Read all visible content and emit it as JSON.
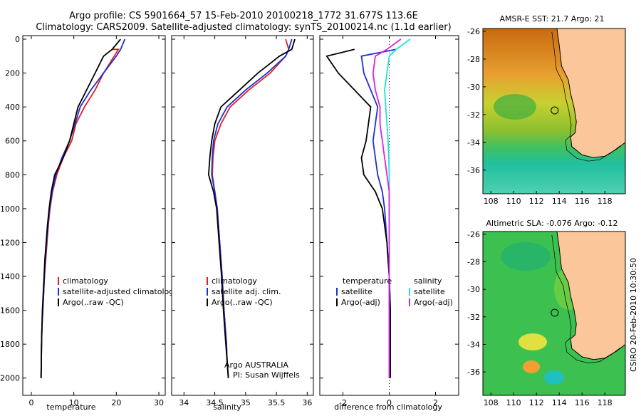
{
  "title": {
    "line1": "Argo profile: CS 5901664_57 15-Feb-2010 20100218_1772 31.677S 113.6E",
    "line2": "Climatology: CARS2009. Satellite-adjusted climatology: synTS_20100214.nc (1.1d earlier)"
  },
  "depth_ticks": [
    "0",
    "200",
    "400",
    "600",
    "800",
    "1000",
    "1200",
    "1400",
    "1600",
    "1800",
    "2000"
  ],
  "chart_data": [
    {
      "type": "line",
      "id": "temperature",
      "xlabel": "temperature",
      "ylabel": "",
      "xlim": [
        -2,
        31.5
      ],
      "ylim": [
        2060,
        0
      ],
      "xticks": [
        "0",
        "10",
        "20",
        "30"
      ],
      "legend": [
        "climatology",
        "satellite-adjusted climatology",
        "Argo(..raw -QC)"
      ],
      "series": [
        {
          "name": "climatology",
          "color": "#e02020",
          "x": [
            19,
            20.5,
            19.5,
            17,
            15,
            12.5,
            10.5,
            9.5,
            7.5,
            6,
            5,
            4.4,
            4,
            3.7,
            3.4,
            3.1,
            2.9,
            2.7,
            2.5,
            2.4,
            2.3
          ],
          "y": [
            60,
            60,
            100,
            200,
            300,
            400,
            500,
            600,
            700,
            800,
            900,
            1000,
            1100,
            1200,
            1300,
            1400,
            1500,
            1600,
            1700,
            1800,
            2000
          ]
        },
        {
          "name": "satellite-adjusted climatology",
          "color": "#1f2fd0",
          "x": [
            22,
            21,
            20,
            17,
            14,
            11.5,
            10.3,
            9,
            7.2,
            5.8,
            4.9,
            4.3,
            3.9,
            3.6,
            3.3,
            3.1,
            2.9,
            2.7,
            2.5,
            2.4,
            2.3
          ],
          "y": [
            0,
            60,
            100,
            200,
            300,
            400,
            500,
            600,
            700,
            800,
            900,
            1000,
            1100,
            1200,
            1300,
            1400,
            1500,
            1600,
            1700,
            1800,
            2000
          ]
        },
        {
          "name": "Argo(..raw -QC)",
          "color": "#000000",
          "x": [
            21,
            19,
            17,
            15,
            13,
            11,
            10,
            9,
            7.5,
            5.5,
            4.7,
            4.2,
            3.8,
            3.5,
            3.2,
            3,
            2.8,
            2.6,
            2.5,
            2.4,
            2.3
          ],
          "y": [
            0,
            60,
            100,
            200,
            300,
            400,
            500,
            600,
            700,
            800,
            900,
            1000,
            1100,
            1200,
            1300,
            1400,
            1500,
            1600,
            1700,
            1800,
            2000
          ]
        }
      ]
    },
    {
      "type": "line",
      "id": "salinity",
      "xlabel": "salinity",
      "ylabel": "",
      "xlim": [
        33.8,
        36.1
      ],
      "ylim": [
        2060,
        0
      ],
      "xticks": [
        "34",
        "34.5",
        "35",
        "35.5",
        "36"
      ],
      "legend": [
        "climatology",
        "satellite adj. clim.",
        "Argo(..raw -QC)"
      ],
      "series": [
        {
          "name": "climatology",
          "color": "#e02020",
          "x": [
            35.65,
            35.7,
            35.65,
            35.4,
            35.05,
            34.75,
            34.6,
            34.5,
            34.47,
            34.46,
            34.5,
            34.54,
            34.58,
            34.62,
            34.65,
            34.67,
            34.69,
            34.7,
            34.72
          ],
          "y": [
            0,
            60,
            100,
            200,
            300,
            400,
            500,
            600,
            700,
            800,
            900,
            1000,
            1200,
            1400,
            1600,
            1700,
            1800,
            1900,
            2000
          ]
        },
        {
          "name": "satellite adj. clim.",
          "color": "#1f2fd0",
          "x": [
            35.75,
            35.7,
            35.65,
            35.35,
            35,
            34.7,
            34.55,
            34.48,
            34.46,
            34.45,
            34.5,
            34.54,
            34.58,
            34.62,
            34.65,
            34.67,
            34.69,
            34.7,
            34.72
          ],
          "y": [
            0,
            60,
            100,
            200,
            300,
            400,
            500,
            600,
            700,
            800,
            900,
            1000,
            1200,
            1400,
            1600,
            1700,
            1800,
            1900,
            2000
          ]
        },
        {
          "name": "Argo(..raw -QC)",
          "color": "#000000",
          "x": [
            35.8,
            35.75,
            35.55,
            35.2,
            34.9,
            34.6,
            34.5,
            34.45,
            34.42,
            34.4,
            34.48,
            34.53,
            34.57,
            34.61,
            34.64,
            34.66,
            34.68,
            34.7,
            34.72
          ],
          "y": [
            0,
            60,
            100,
            200,
            300,
            400,
            500,
            600,
            700,
            800,
            900,
            1000,
            1200,
            1400,
            1600,
            1700,
            1800,
            1900,
            2000
          ]
        }
      ],
      "annotation": [
        "Argo AUSTRALIA",
        "PI: Susan Wijffels"
      ]
    },
    {
      "type": "line",
      "id": "difference",
      "xlabel": "difference from climatology",
      "ylabel": "",
      "xlim": [
        -3,
        3
      ],
      "ylim": [
        2060,
        0
      ],
      "xticks": [
        "-2",
        "0",
        "2"
      ],
      "legend_groups": [
        "temperature",
        "salinity"
      ],
      "legend": [
        "satellite",
        "Argo(-adj)",
        "satellite",
        "Argo(-adj)"
      ],
      "series": [
        {
          "name": "temperature satellite",
          "color": "#1f2fd0",
          "x": [
            0.3,
            -1.2,
            -1.1,
            -0.8,
            -0.5,
            -0.6,
            -0.7,
            -0.6,
            -0.5,
            -0.3,
            -0.2,
            -0.1,
            0,
            0.05,
            0.05,
            0.05,
            0.05
          ],
          "y": [
            60,
            100,
            200,
            300,
            400,
            500,
            600,
            700,
            800,
            900,
            1000,
            1200,
            1400,
            1600,
            1700,
            1800,
            2000
          ]
        },
        {
          "name": "temperature Argo(-adj)",
          "color": "#000000",
          "x": [
            -1.5,
            -2.7,
            -2.2,
            -1.5,
            -0.8,
            -0.9,
            -1,
            -1.2,
            -1.1,
            -0.6,
            -0.3,
            -0.1,
            0,
            0.05,
            0.05,
            0.05,
            0.05
          ],
          "y": [
            60,
            100,
            200,
            300,
            400,
            500,
            600,
            700,
            800,
            900,
            1000,
            1200,
            1400,
            1600,
            1700,
            1800,
            2000
          ]
        },
        {
          "name": "salinity satellite",
          "color": "#20e0e0",
          "x": [
            0.9,
            0.3,
            0,
            -0.1,
            -0.2,
            -0.15,
            -0.1,
            -0.05,
            -0.02,
            0,
            0,
            0,
            0,
            0,
            0,
            0,
            0
          ],
          "y": [
            0,
            60,
            100,
            200,
            300,
            400,
            500,
            600,
            700,
            800,
            900,
            1000,
            1200,
            1400,
            1600,
            1800,
            2000
          ]
        },
        {
          "name": "salinity Argo(-adj)",
          "color": "#e020e0",
          "x": [
            0.5,
            -0.1,
            -0.6,
            -0.7,
            -0.6,
            -0.4,
            -0.4,
            -0.3,
            -0.2,
            -0.1,
            0,
            0,
            0,
            0,
            0,
            0,
            0
          ],
          "y": [
            0,
            60,
            100,
            200,
            300,
            400,
            500,
            600,
            700,
            800,
            900,
            1000,
            1200,
            1400,
            1600,
            1800,
            2000
          ]
        }
      ]
    }
  ],
  "maps": [
    {
      "title": "AMSR-E SST: 21.7 Argo: 21",
      "xticks": [
        "108",
        "110",
        "112",
        "114",
        "116",
        "118"
      ],
      "yticks": [
        "-26",
        "-28",
        "-30",
        "-32",
        "-34",
        "-36"
      ],
      "xlim": [
        107.3,
        119.8
      ],
      "ylim": [
        -37.7,
        -25.8
      ],
      "marker": [
        113.6,
        -31.7
      ]
    },
    {
      "title": "Altimetric SLA: -0.076 Argo: -0.12",
      "xticks": [
        "108",
        "110",
        "112",
        "114",
        "116",
        "118"
      ],
      "yticks": [
        "-26",
        "-28",
        "-30",
        "-32",
        "-34",
        "-36"
      ],
      "xlim": [
        107.3,
        119.8
      ],
      "ylim": [
        -37.7,
        -25.8
      ],
      "marker": [
        113.6,
        -31.7
      ]
    }
  ],
  "footer": "CSIRO 20-Feb-2010 10:30:50",
  "colors": {
    "land": "#fbc69a",
    "sst_warm": "#e07a20",
    "sst_cool": "#10c090",
    "sla_green": "#30c050"
  }
}
